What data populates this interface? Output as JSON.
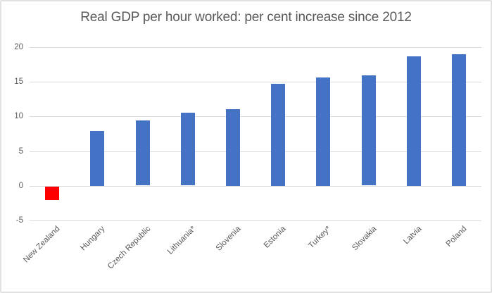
{
  "figure": {
    "background": "#ffffff",
    "border_color": "#e2e2e2"
  },
  "chart_data": {
    "type": "bar",
    "title": "Real GDP per hour worked: per cent increase since 2012",
    "categories": [
      "New Zealand",
      "Hungary",
      "Czech Republic",
      "Lithuania*",
      "Slovenia",
      "Estonia",
      "Turkey*",
      "Slovakia",
      "Latvia",
      "Poland"
    ],
    "values": [
      -1.9,
      7.9,
      9.4,
      10.5,
      11.1,
      14.7,
      15.6,
      15.9,
      18.7,
      19.0
    ],
    "bar_colors": [
      "#ff0000",
      "#4472c4",
      "#4472c4",
      "#4472c4",
      "#4472c4",
      "#4472c4",
      "#4472c4",
      "#4472c4",
      "#4472c4",
      "#4472c4"
    ],
    "default_bar_color": "#4472c4",
    "highlight_bar_color": "#ff0000",
    "highlight_category": "New Zealand",
    "xlabel": "",
    "ylabel": "",
    "ylim": [
      -5,
      20
    ],
    "yticks": [
      20,
      15,
      10,
      5,
      0,
      -5
    ],
    "ytick_labels": [
      "20",
      "15",
      "10",
      "5",
      "0",
      "-5"
    ],
    "grid": true,
    "gridline_color": "#d9d9d9",
    "text_color": "#595959",
    "legend": null
  }
}
